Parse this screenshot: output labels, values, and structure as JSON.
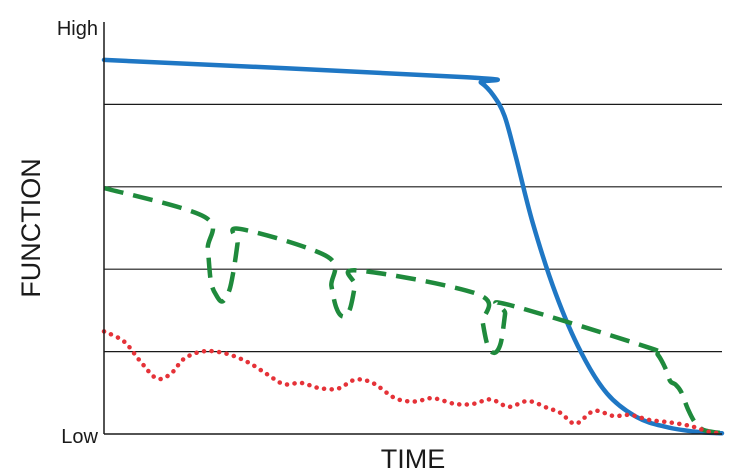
{
  "chart_data": {
    "type": "line",
    "xlabel": "TIME",
    "ylabel": "FUNCTION",
    "y_tick_labels": {
      "high": "High",
      "low": "Low"
    },
    "xlim": [
      0,
      100
    ],
    "ylim": [
      0,
      100
    ],
    "grid": "horizontal",
    "legend": "none",
    "gridlines_y": [
      20,
      40,
      60,
      80
    ],
    "series": [
      {
        "style": "solid",
        "color": "#1f77c4",
        "points": [
          [
            0,
            90.8
          ],
          [
            58.7,
            86.6
          ],
          [
            61,
            85.3
          ],
          [
            63,
            82.2
          ],
          [
            64.8,
            77.2
          ],
          [
            66.6,
            67.5
          ],
          [
            69.4,
            51.1
          ],
          [
            73.1,
            34
          ],
          [
            77.2,
            19.8
          ],
          [
            81.4,
            9.8
          ],
          [
            86.2,
            4.1
          ],
          [
            91,
            1.7
          ],
          [
            96,
            0.5
          ],
          [
            100,
            0.2
          ]
        ]
      },
      {
        "style": "dashed",
        "color": "#1f8a3c",
        "points": [
          [
            0,
            59.7
          ],
          [
            16.3,
            52.7
          ],
          [
            16.8,
            45
          ],
          [
            17.3,
            37
          ],
          [
            18.2,
            33.6
          ],
          [
            19.2,
            32.2
          ],
          [
            20.3,
            35
          ],
          [
            21,
            40
          ],
          [
            21.6,
            46.2
          ],
          [
            21.9,
            49.8
          ],
          [
            36.2,
            43
          ],
          [
            36.8,
            36
          ],
          [
            37.6,
            30.6
          ],
          [
            38.7,
            28.5
          ],
          [
            39.8,
            30.4
          ],
          [
            40.6,
            36
          ],
          [
            41,
            39.7
          ],
          [
            60.7,
            33.8
          ],
          [
            61.3,
            27
          ],
          [
            62.1,
            21.4
          ],
          [
            63.2,
            19.7
          ],
          [
            64.2,
            22.1
          ],
          [
            64.9,
            29.2
          ],
          [
            65.1,
            31.5
          ],
          [
            88.5,
            20.8
          ],
          [
            89.6,
            19.3
          ],
          [
            90.8,
            16.1
          ],
          [
            91.6,
            12.9
          ],
          [
            92.5,
            12
          ],
          [
            93.4,
            10.2
          ],
          [
            94.5,
            6
          ],
          [
            95.6,
            2.9
          ],
          [
            97,
            1
          ],
          [
            100,
            0.2
          ]
        ]
      },
      {
        "style": "dotted",
        "color": "#e53238",
        "points": [
          [
            0,
            24.9
          ],
          [
            3.2,
            22.5
          ],
          [
            5.8,
            17.8
          ],
          [
            8.5,
            13.5
          ],
          [
            10.8,
            14.6
          ],
          [
            13,
            18.3
          ],
          [
            16.2,
            20.1
          ],
          [
            19.8,
            19.5
          ],
          [
            23.3,
            17.4
          ],
          [
            26.4,
            14.5
          ],
          [
            29.1,
            12.1
          ],
          [
            31.9,
            12.4
          ],
          [
            34.7,
            11.2
          ],
          [
            37.8,
            11
          ],
          [
            40.7,
            13.2
          ],
          [
            43.6,
            12.3
          ],
          [
            47.1,
            8.7
          ],
          [
            50.3,
            7.9
          ],
          [
            53.2,
            8.7
          ],
          [
            56.8,
            7.3
          ],
          [
            59.7,
            7.3
          ],
          [
            62.6,
            8.4
          ],
          [
            65.5,
            6.6
          ],
          [
            68.6,
            8
          ],
          [
            71.8,
            6.3
          ],
          [
            73.9,
            5.1
          ],
          [
            76.3,
            2.5
          ],
          [
            79.3,
            5.6
          ],
          [
            82.4,
            4.4
          ],
          [
            85.2,
            4.6
          ],
          [
            88.3,
            3.4
          ],
          [
            91.7,
            2.8
          ],
          [
            95,
            1.9
          ],
          [
            98,
            0.5
          ],
          [
            100,
            0.2
          ]
        ]
      }
    ]
  }
}
